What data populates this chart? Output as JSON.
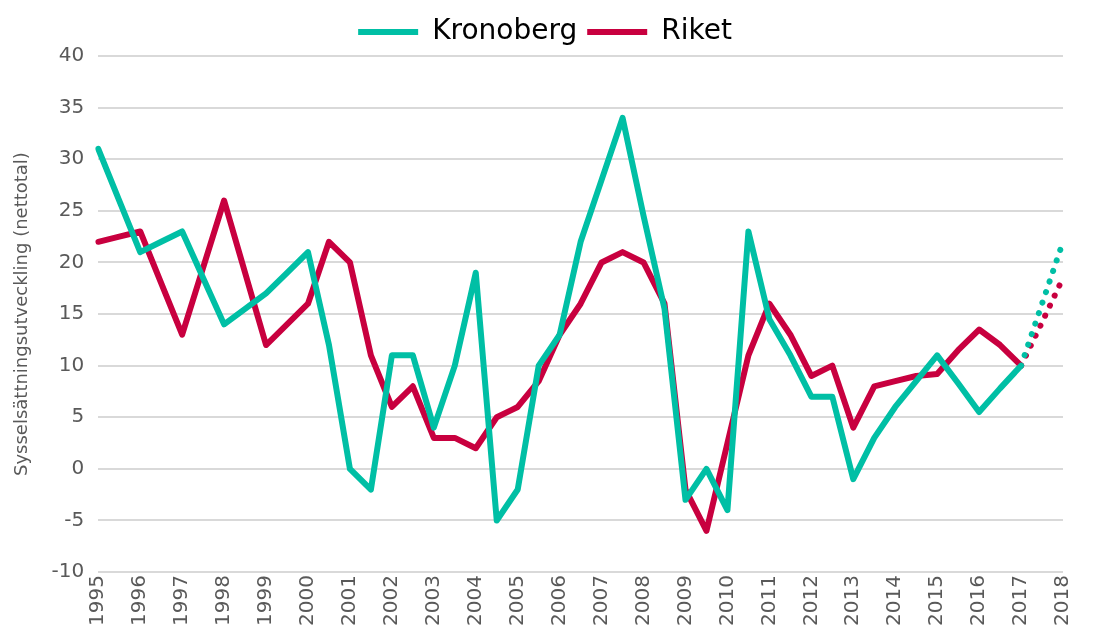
{
  "chart_data": {
    "type": "line",
    "ylabel": "Sysselsättningsutveckling (nettotal)",
    "categories": [
      "1995",
      null,
      "1996",
      null,
      "1997",
      null,
      "1998",
      null,
      "1999",
      null,
      "2000",
      null,
      "2001",
      null,
      "2002",
      null,
      "2003",
      null,
      "2004",
      null,
      "2005",
      null,
      "2006",
      null,
      "2007",
      null,
      "2008",
      null,
      "2009",
      null,
      "2010",
      null,
      "2011",
      null,
      "2012",
      null,
      "2013",
      null,
      "2014",
      null,
      "2015",
      null,
      "2016",
      null,
      "2017",
      null,
      "2018"
    ],
    "series": [
      {
        "name": "Kronoberg",
        "color": "#00bfa5",
        "line_style": "solid",
        "values": [
          31,
          26,
          21,
          22,
          23,
          18.5,
          14,
          15.5,
          17,
          19,
          21,
          12,
          0,
          -2,
          11,
          11,
          4,
          10,
          19,
          -5,
          -2,
          10,
          13,
          22,
          28,
          34,
          24.5,
          15.5,
          -3,
          0,
          -4,
          23,
          14.5,
          11,
          7,
          7,
          -1,
          3,
          6,
          8.5,
          11,
          8.3,
          5.5,
          7.8,
          10,
          null,
          null
        ]
      },
      {
        "name": "Riket",
        "color": "#c8003f",
        "line_style": "solid",
        "values": [
          22,
          22.5,
          23,
          18,
          13,
          19.5,
          26,
          19,
          12,
          14,
          16,
          22,
          20,
          11,
          6,
          8,
          3,
          3,
          2,
          5,
          6,
          8.5,
          13,
          16,
          20,
          21,
          20,
          16,
          -2,
          -6,
          2.5,
          11,
          16,
          13,
          9,
          10,
          4,
          8,
          8.5,
          9,
          9.2,
          11.5,
          13.5,
          12,
          10,
          null,
          null
        ]
      },
      {
        "color": "#00bfa5",
        "line_style": "dotted",
        "values": [
          null,
          null,
          null,
          null,
          null,
          null,
          null,
          null,
          null,
          null,
          null,
          null,
          null,
          null,
          null,
          null,
          null,
          null,
          null,
          null,
          null,
          null,
          null,
          null,
          null,
          null,
          null,
          null,
          null,
          null,
          null,
          null,
          null,
          null,
          null,
          null,
          null,
          null,
          null,
          null,
          null,
          null,
          null,
          null,
          10,
          16,
          22
        ]
      },
      {
        "color": "#c8003f",
        "line_style": "dotted",
        "values": [
          null,
          null,
          null,
          null,
          null,
          null,
          null,
          null,
          null,
          null,
          null,
          null,
          null,
          null,
          null,
          null,
          null,
          null,
          null,
          null,
          null,
          null,
          null,
          null,
          null,
          null,
          null,
          null,
          null,
          null,
          null,
          null,
          null,
          null,
          null,
          null,
          null,
          null,
          null,
          null,
          null,
          null,
          null,
          null,
          10,
          14.2,
          18.5
        ]
      }
    ],
    "ylim": [
      -10,
      40
    ],
    "yticks": [
      -10,
      -5,
      0,
      5,
      10,
      15,
      20,
      25,
      30,
      35,
      40
    ],
    "grid": "y",
    "legend": "top",
    "marker": "none"
  }
}
